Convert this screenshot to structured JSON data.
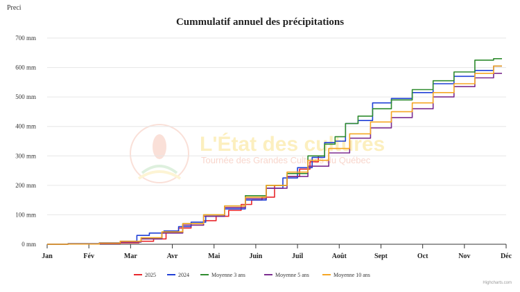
{
  "page": {
    "corner_label": "Preci",
    "credits": "Highcharts.com"
  },
  "watermark": {
    "title": "L'État des cultures",
    "subtitle": "Tournée des Grandes Cultures du Québec"
  },
  "chart_data": {
    "type": "line",
    "title": "Cummulatif annuel des précipitations",
    "xlabel": "",
    "ylabel": "",
    "x_ticks": [
      "Jan",
      "Fév",
      "Mar",
      "Avr",
      "Mai",
      "Juin",
      "Juil",
      "Août",
      "Sept",
      "Oct",
      "Nov",
      "Déc"
    ],
    "y_ticks": [
      "0 mm",
      "100 mm",
      "200 mm",
      "300 mm",
      "400 mm",
      "500 mm",
      "600 mm",
      "700 mm"
    ],
    "xlim": [
      0,
      11
    ],
    "ylim": [
      0,
      700
    ],
    "grid": true,
    "legend_position": "bottom-center",
    "series": [
      {
        "name": "2025",
        "color": "#e8262b",
        "x": [
          0,
          1,
          1.5,
          2,
          2.4,
          2.7,
          3.0,
          3.3,
          3.6,
          3.9,
          4.2,
          4.5,
          4.8,
          5.0,
          5.3,
          5.6,
          5.9,
          6.2,
          6.4,
          6.6
        ],
        "y": [
          0,
          1,
          2,
          5,
          10,
          18,
          40,
          55,
          65,
          80,
          95,
          115,
          135,
          150,
          160,
          200,
          230,
          255,
          280,
          300
        ]
      },
      {
        "name": "2024",
        "color": "#1f3fd6",
        "x": [
          0,
          1,
          1.5,
          2,
          2.3,
          2.6,
          3.0,
          3.3,
          3.6,
          4.0,
          4.5,
          5.0,
          5.5,
          5.8,
          6.2,
          6.5,
          6.8,
          7.0,
          7.3,
          7.6,
          8.0,
          8.5,
          9.0,
          9.5,
          10.0,
          10.5,
          10.9
        ],
        "y": [
          0,
          2,
          5,
          10,
          30,
          38,
          45,
          60,
          75,
          95,
          120,
          150,
          190,
          225,
          260,
          295,
          345,
          350,
          410,
          420,
          480,
          495,
          515,
          545,
          570,
          590,
          605
        ]
      },
      {
        "name": "Moyenne 3 ans",
        "color": "#2e8b2e",
        "x": [
          0,
          1,
          1.5,
          2,
          2.5,
          3.0,
          3.5,
          4.0,
          4.5,
          5.0,
          5.5,
          6.0,
          6.5,
          6.8,
          7.0,
          7.3,
          7.6,
          8.0,
          8.5,
          9.0,
          9.5,
          10.0,
          10.5,
          10.9
        ],
        "y": [
          0,
          1,
          3,
          8,
          20,
          40,
          70,
          100,
          130,
          165,
          200,
          240,
          300,
          340,
          365,
          410,
          435,
          460,
          490,
          525,
          555,
          585,
          625,
          630
        ]
      },
      {
        "name": "Moyenne 5 ans",
        "color": "#7b2c8f",
        "x": [
          0,
          1,
          1.5,
          2,
          2.5,
          3.0,
          3.5,
          4.0,
          4.5,
          5.0,
          5.5,
          6.0,
          6.5,
          7.0,
          7.5,
          8.0,
          8.5,
          9.0,
          9.5,
          10.0,
          10.5,
          10.9
        ],
        "y": [
          0,
          1,
          3,
          7,
          18,
          38,
          65,
          95,
          125,
          155,
          190,
          230,
          265,
          310,
          360,
          395,
          430,
          460,
          500,
          535,
          565,
          580
        ]
      },
      {
        "name": "Moyenne 10 ans",
        "color": "#f5a623",
        "x": [
          0,
          1,
          1.5,
          2,
          2.5,
          3.0,
          3.5,
          4.0,
          4.5,
          5.0,
          5.5,
          6.0,
          6.5,
          7.0,
          7.5,
          8.0,
          8.5,
          9.0,
          9.5,
          10.0,
          10.5,
          10.9
        ],
        "y": [
          0,
          1,
          4,
          10,
          22,
          42,
          70,
          100,
          130,
          160,
          200,
          245,
          285,
          325,
          375,
          415,
          450,
          480,
          515,
          545,
          580,
          605
        ]
      }
    ]
  }
}
